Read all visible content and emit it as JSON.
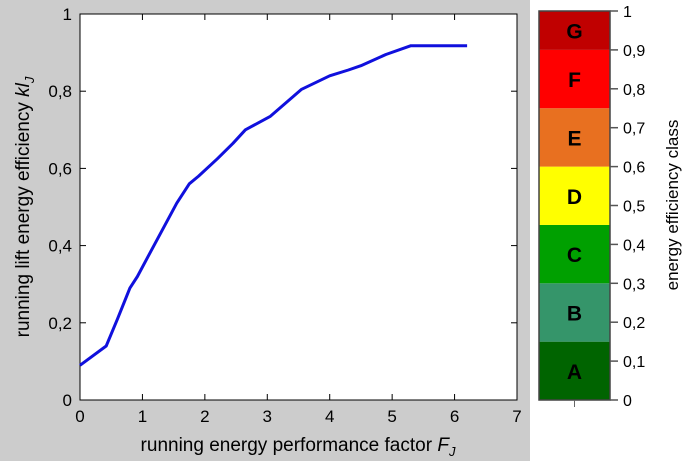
{
  "chart_data": [
    {
      "type": "line",
      "xlabel_text": "running energy performance factor ",
      "xlabel_var": "F",
      "xlabel_sub": "J",
      "ylabel_text": "running lift energy efficiency ",
      "ylabel_var": "kl",
      "ylabel_sub": "J",
      "xlim": [
        0,
        7
      ],
      "ylim": [
        0,
        1
      ],
      "x_ticks": [
        "0",
        "1",
        "2",
        "3",
        "4",
        "5",
        "6",
        "7"
      ],
      "y_ticks": [
        "0",
        "0,2",
        "0,4",
        "0,6",
        "0,8",
        "1"
      ],
      "grid": false,
      "series": [
        {
          "color": "#1010dd",
          "x": [
            0,
            0.42,
            0.6,
            0.8,
            0.92,
            1.1,
            1.35,
            1.55,
            1.75,
            1.9,
            2.2,
            2.45,
            2.65,
            3.05,
            3.3,
            3.55,
            4.0,
            4.3,
            4.5,
            4.9,
            5.3,
            5.8,
            6.2
          ],
          "y": [
            0.09,
            0.14,
            0.21,
            0.29,
            0.32,
            0.375,
            0.45,
            0.51,
            0.56,
            0.58,
            0.625,
            0.665,
            0.7,
            0.735,
            0.77,
            0.805,
            0.84,
            0.855,
            0.866,
            0.895,
            0.918,
            0.918,
            0.918
          ]
        }
      ]
    },
    {
      "type": "colorbar",
      "ylabel": "energy efficiency class",
      "ylim": [
        0,
        1
      ],
      "y_ticks": [
        "0",
        "0,1",
        "0,2",
        "0,3",
        "0,4",
        "0,5",
        "0,6",
        "0,7",
        "0,8",
        "0,9",
        "1"
      ],
      "classes": [
        {
          "label": "A",
          "from": 0.0,
          "to": 0.15,
          "color": "#006400"
        },
        {
          "label": "B",
          "from": 0.15,
          "to": 0.3,
          "color": "#35956a"
        },
        {
          "label": "C",
          "from": 0.3,
          "to": 0.45,
          "color": "#00a000"
        },
        {
          "label": "D",
          "from": 0.45,
          "to": 0.6,
          "color": "#ffff00"
        },
        {
          "label": "E",
          "from": 0.6,
          "to": 0.75,
          "color": "#e87020"
        },
        {
          "label": "F",
          "from": 0.75,
          "to": 0.9,
          "color": "#ff0000"
        },
        {
          "label": "G",
          "from": 0.9,
          "to": 1.0,
          "color": "#c00000"
        }
      ]
    }
  ],
  "colors": {
    "background": "#cccccc",
    "plot_background": "#ffffff"
  }
}
